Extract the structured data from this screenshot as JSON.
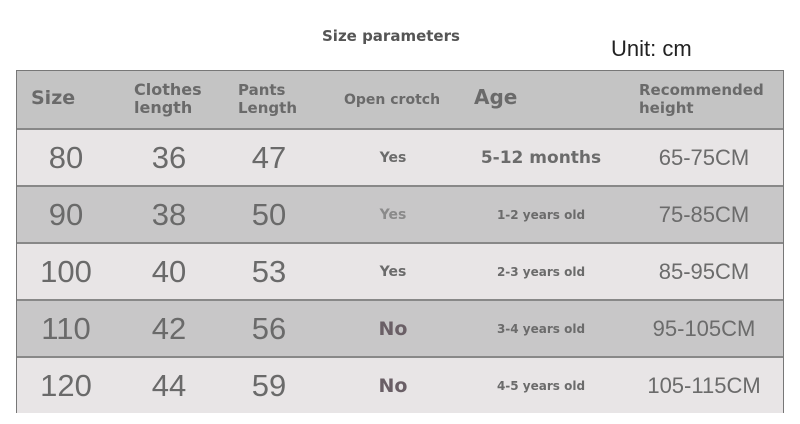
{
  "title": "Size parameters",
  "unit": "Unit: cm",
  "headers": [
    "Size",
    "Clothes length",
    "Pants Length",
    "Open crotch",
    "Age",
    "Recommended height"
  ],
  "header_lines": {
    "clothes": [
      "Clothes",
      "length"
    ],
    "pants": [
      "Pants",
      "Length"
    ],
    "height": [
      "Recommended",
      "height"
    ]
  },
  "rows": [
    {
      "size": "80",
      "clothes": "36",
      "pants": "47",
      "open": "Yes",
      "age": "5-12 months",
      "height": "65-75CM"
    },
    {
      "size": "90",
      "clothes": "38",
      "pants": "50",
      "open": "Yes",
      "age": "1-2 years old",
      "height": "75-85CM"
    },
    {
      "size": "100",
      "clothes": "40",
      "pants": "53",
      "open": "Yes",
      "age": "2-3 years old",
      "height": "85-95CM"
    },
    {
      "size": "110",
      "clothes": "42",
      "pants": "56",
      "open": "No",
      "age": "3-4 years old",
      "height": "95-105CM"
    },
    {
      "size": "120",
      "clothes": "44",
      "pants": "59",
      "open": "No",
      "age": "4-5 years old",
      "height": "105-115CM"
    }
  ],
  "colors": {
    "header": "#c4c4c4",
    "row_light": "#e8e5e6",
    "row_dark": "#c8c7c8",
    "text": "#6a6a6a"
  }
}
